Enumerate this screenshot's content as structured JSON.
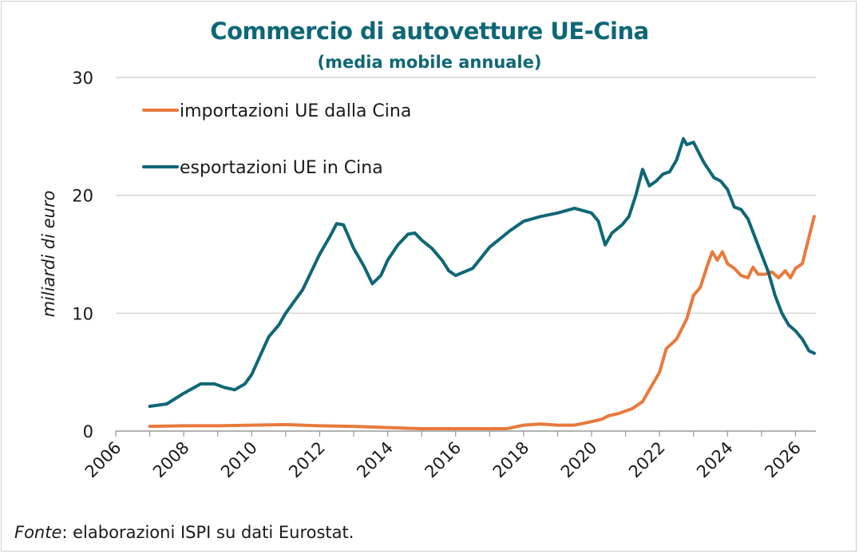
{
  "chart_data": {
    "type": "line",
    "title": "Commercio di autovetture UE-Cina",
    "subtitle": "(media mobile annuale)",
    "ylabel": "miliardi di euro",
    "xlabel": "",
    "ylim": [
      0,
      30
    ],
    "yticks": [
      "0",
      "10",
      "20",
      "30"
    ],
    "xlim": [
      2006,
      2026.6
    ],
    "xticks": [
      "2006",
      "2008",
      "2010",
      "2012",
      "2014",
      "2016",
      "2018",
      "2020",
      "2022",
      "2024",
      "2026"
    ],
    "grid": "horizontal",
    "legend_position": "top-left",
    "series": [
      {
        "name": "importazioni UE dalla Cina",
        "color": "#e87a3c",
        "points": [
          [
            2007.0,
            0.4
          ],
          [
            2008.0,
            0.45
          ],
          [
            2009.0,
            0.45
          ],
          [
            2010.0,
            0.5
          ],
          [
            2011.0,
            0.55
          ],
          [
            2012.0,
            0.45
          ],
          [
            2013.0,
            0.4
          ],
          [
            2014.0,
            0.3
          ],
          [
            2015.0,
            0.2
          ],
          [
            2016.0,
            0.2
          ],
          [
            2017.0,
            0.2
          ],
          [
            2017.5,
            0.2
          ],
          [
            2018.0,
            0.5
          ],
          [
            2018.5,
            0.6
          ],
          [
            2019.0,
            0.5
          ],
          [
            2019.5,
            0.5
          ],
          [
            2020.0,
            0.8
          ],
          [
            2020.3,
            1.0
          ],
          [
            2020.5,
            1.3
          ],
          [
            2020.8,
            1.5
          ],
          [
            2021.0,
            1.7
          ],
          [
            2021.2,
            1.9
          ],
          [
            2021.5,
            2.5
          ],
          [
            2021.7,
            3.5
          ],
          [
            2022.0,
            5.0
          ],
          [
            2022.2,
            7.0
          ],
          [
            2022.5,
            7.8
          ],
          [
            2022.8,
            9.5
          ],
          [
            2023.0,
            11.5
          ],
          [
            2023.2,
            12.2
          ],
          [
            2023.4,
            14.0
          ],
          [
            2023.55,
            15.2
          ],
          [
            2023.7,
            14.5
          ],
          [
            2023.85,
            15.2
          ],
          [
            2024.0,
            14.2
          ],
          [
            2024.2,
            13.8
          ],
          [
            2024.4,
            13.2
          ],
          [
            2024.6,
            13.0
          ],
          [
            2024.75,
            13.9
          ],
          [
            2024.9,
            13.3
          ],
          [
            2025.1,
            13.3
          ],
          [
            2025.3,
            13.5
          ],
          [
            2025.5,
            13.0
          ],
          [
            2025.7,
            13.6
          ],
          [
            2025.85,
            13.0
          ],
          [
            2026.0,
            13.8
          ],
          [
            2026.2,
            14.2
          ],
          [
            2026.4,
            16.5
          ],
          [
            2026.55,
            18.2
          ]
        ]
      },
      {
        "name": "esportazioni UE in Cina",
        "color": "#0f6776",
        "points": [
          [
            2007.0,
            2.1
          ],
          [
            2007.5,
            2.3
          ],
          [
            2008.0,
            3.2
          ],
          [
            2008.5,
            4.0
          ],
          [
            2008.9,
            4.0
          ],
          [
            2009.2,
            3.7
          ],
          [
            2009.5,
            3.5
          ],
          [
            2009.8,
            4.0
          ],
          [
            2010.0,
            4.8
          ],
          [
            2010.5,
            8.0
          ],
          [
            2010.8,
            9.0
          ],
          [
            2011.0,
            10.0
          ],
          [
            2011.5,
            12.0
          ],
          [
            2012.0,
            15.0
          ],
          [
            2012.3,
            16.5
          ],
          [
            2012.5,
            17.6
          ],
          [
            2012.7,
            17.5
          ],
          [
            2013.0,
            15.5
          ],
          [
            2013.3,
            14.0
          ],
          [
            2013.55,
            12.5
          ],
          [
            2013.8,
            13.2
          ],
          [
            2014.0,
            14.5
          ],
          [
            2014.3,
            15.8
          ],
          [
            2014.6,
            16.7
          ],
          [
            2014.8,
            16.8
          ],
          [
            2015.0,
            16.2
          ],
          [
            2015.3,
            15.5
          ],
          [
            2015.6,
            14.5
          ],
          [
            2015.8,
            13.6
          ],
          [
            2016.0,
            13.2
          ],
          [
            2016.5,
            13.8
          ],
          [
            2017.0,
            15.6
          ],
          [
            2017.3,
            16.3
          ],
          [
            2017.6,
            17.0
          ],
          [
            2018.0,
            17.8
          ],
          [
            2018.5,
            18.2
          ],
          [
            2019.0,
            18.5
          ],
          [
            2019.5,
            18.9
          ],
          [
            2020.0,
            18.5
          ],
          [
            2020.2,
            17.8
          ],
          [
            2020.4,
            15.8
          ],
          [
            2020.6,
            16.8
          ],
          [
            2020.9,
            17.5
          ],
          [
            2021.1,
            18.2
          ],
          [
            2021.3,
            20.0
          ],
          [
            2021.5,
            22.2
          ],
          [
            2021.7,
            20.8
          ],
          [
            2021.9,
            21.2
          ],
          [
            2022.1,
            21.8
          ],
          [
            2022.3,
            22.0
          ],
          [
            2022.5,
            23.0
          ],
          [
            2022.7,
            24.8
          ],
          [
            2022.8,
            24.3
          ],
          [
            2023.0,
            24.5
          ],
          [
            2023.3,
            22.8
          ],
          [
            2023.6,
            21.5
          ],
          [
            2023.8,
            21.2
          ],
          [
            2024.0,
            20.5
          ],
          [
            2024.2,
            19.0
          ],
          [
            2024.4,
            18.8
          ],
          [
            2024.6,
            18.0
          ],
          [
            2024.8,
            16.5
          ],
          [
            2025.0,
            15.0
          ],
          [
            2025.2,
            13.5
          ],
          [
            2025.4,
            11.5
          ],
          [
            2025.6,
            10.0
          ],
          [
            2025.8,
            9.0
          ],
          [
            2026.0,
            8.5
          ],
          [
            2026.2,
            7.8
          ],
          [
            2026.4,
            6.8
          ],
          [
            2026.55,
            6.6
          ]
        ]
      }
    ]
  },
  "source": {
    "label": "Fonte",
    "text": ": elaborazioni ISPI su dati Eurostat."
  }
}
